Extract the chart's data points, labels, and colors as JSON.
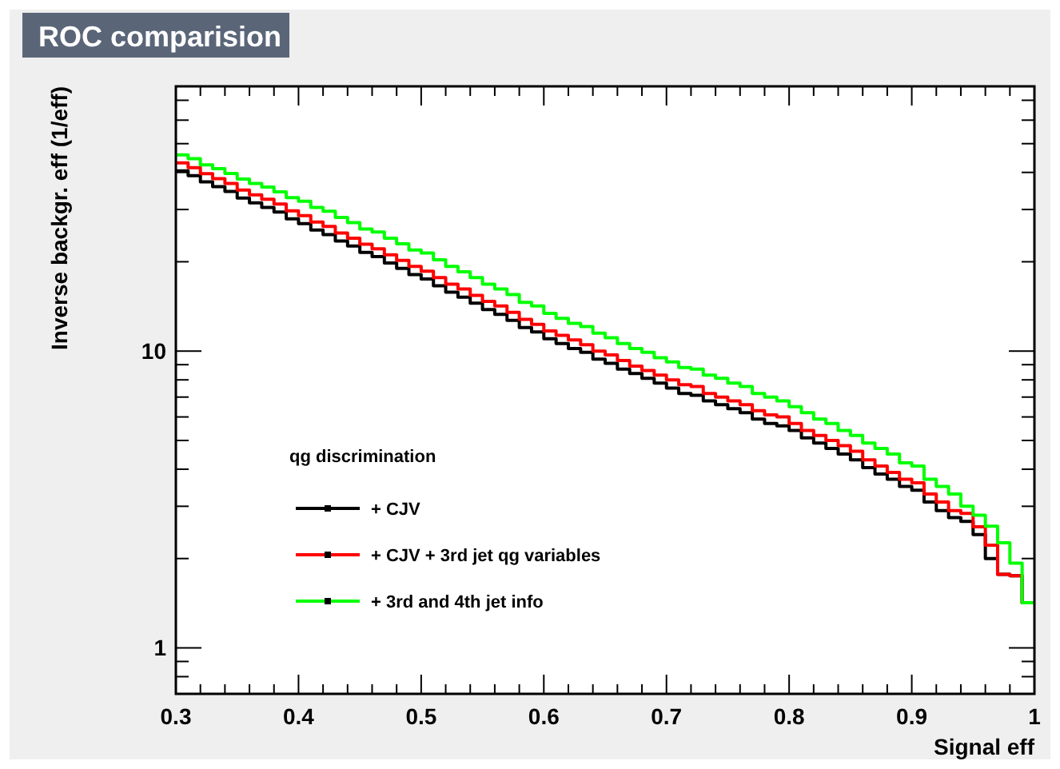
{
  "chart_data": {
    "type": "histogram",
    "title": "ROC comparision",
    "xlabel": "Signal eff",
    "ylabel": "Inverse backgr. eff (1/eff)",
    "legend_title": "qg discrimination",
    "legend": "bottom left",
    "log": "y",
    "grid": false,
    "marker": "square",
    "xlim": [
      0.3,
      1
    ],
    "ylim": [
      0.7,
      78
    ],
    "xticks": [
      {
        "value": 0.3,
        "label": "0.3"
      },
      {
        "value": 0.32,
        "label": null
      },
      {
        "value": 0.34,
        "label": null
      },
      {
        "value": 0.36,
        "label": null
      },
      {
        "value": 0.38,
        "label": null
      },
      {
        "value": 0.4,
        "label": "0.4"
      },
      {
        "value": 0.42,
        "label": null
      },
      {
        "value": 0.44,
        "label": null
      },
      {
        "value": 0.46,
        "label": null
      },
      {
        "value": 0.48,
        "label": null
      },
      {
        "value": 0.5,
        "label": "0.5"
      },
      {
        "value": 0.52,
        "label": null
      },
      {
        "value": 0.54,
        "label": null
      },
      {
        "value": 0.56,
        "label": null
      },
      {
        "value": 0.58,
        "label": null
      },
      {
        "value": 0.6,
        "label": "0.6"
      },
      {
        "value": 0.62,
        "label": null
      },
      {
        "value": 0.64,
        "label": null
      },
      {
        "value": 0.66,
        "label": null
      },
      {
        "value": 0.68,
        "label": null
      },
      {
        "value": 0.7,
        "label": "0.7"
      },
      {
        "value": 0.72,
        "label": null
      },
      {
        "value": 0.74,
        "label": null
      },
      {
        "value": 0.76,
        "label": null
      },
      {
        "value": 0.78,
        "label": null
      },
      {
        "value": 0.8,
        "label": "0.8"
      },
      {
        "value": 0.82,
        "label": null
      },
      {
        "value": 0.84,
        "label": null
      },
      {
        "value": 0.86,
        "label": null
      },
      {
        "value": 0.88,
        "label": null
      },
      {
        "value": 0.9,
        "label": "0.9"
      },
      {
        "value": 0.92,
        "label": null
      },
      {
        "value": 0.94,
        "label": null
      },
      {
        "value": 0.96,
        "label": null
      },
      {
        "value": 0.98,
        "label": null
      },
      {
        "value": 1,
        "label": "1"
      }
    ],
    "yticks": [
      {
        "value": 0.7,
        "label": null
      },
      {
        "value": 0.8,
        "label": null
      },
      {
        "value": 0.9,
        "label": null
      },
      1,
      {
        "value": 2,
        "label": null
      },
      {
        "value": 3,
        "label": null
      },
      {
        "value": 4,
        "label": null
      },
      {
        "value": 5,
        "label": null
      },
      {
        "value": 6,
        "label": null
      },
      {
        "value": 7,
        "label": null
      },
      {
        "value": 8,
        "label": null
      },
      {
        "value": 9,
        "label": null
      },
      10,
      {
        "value": 20,
        "label": null
      },
      {
        "value": 30,
        "label": null
      },
      {
        "value": 40,
        "label": null
      },
      {
        "value": 50,
        "label": null
      },
      {
        "value": 60,
        "label": null
      },
      {
        "value": 70,
        "label": null
      }
    ],
    "bins": [
      0.3,
      0.31,
      0.32,
      0.33,
      0.34,
      0.35,
      0.36,
      0.37,
      0.38,
      0.39,
      0.4,
      0.41,
      0.42,
      0.43,
      0.44,
      0.45,
      0.46,
      0.47,
      0.48,
      0.49,
      0.5,
      0.51,
      0.52,
      0.53,
      0.54,
      0.55,
      0.56,
      0.57,
      0.58,
      0.59,
      0.6,
      0.61,
      0.62,
      0.63,
      0.64,
      0.65,
      0.66,
      0.67,
      0.68,
      0.69,
      0.7,
      0.71,
      0.72,
      0.73,
      0.74,
      0.75,
      0.76,
      0.77,
      0.78,
      0.79,
      0.8,
      0.81,
      0.82,
      0.83,
      0.84,
      0.85,
      0.86,
      0.87,
      0.88,
      0.89,
      0.9,
      0.91,
      0.92,
      0.93,
      0.94,
      0.95,
      0.96,
      0.97,
      0.98,
      0.99,
      1
    ],
    "series": [
      {
        "name": "+ CJV",
        "color": "#000000",
        "values": [
          40.5,
          39.0,
          37.2,
          35.8,
          34.5,
          32.8,
          31.6,
          30.5,
          29.4,
          27.9,
          26.9,
          25.6,
          24.7,
          23.5,
          22.6,
          21.5,
          20.8,
          19.8,
          19.0,
          18.1,
          17.5,
          16.6,
          15.8,
          15.2,
          14.5,
          13.8,
          13.3,
          12.7,
          12.0,
          11.6,
          11.0,
          10.6,
          10.2,
          9.9,
          9.4,
          9.1,
          8.7,
          8.4,
          8.1,
          7.8,
          7.5,
          7.2,
          7.1,
          6.8,
          6.6,
          6.4,
          6.2,
          5.9,
          5.7,
          5.6,
          5.4,
          5.1,
          4.9,
          4.7,
          4.5,
          4.3,
          4.05,
          3.85,
          3.7,
          3.5,
          3.4,
          3.1,
          2.9,
          2.75,
          2.67,
          2.41,
          2.0,
          1.77,
          1.75,
          1.42
        ]
      },
      {
        "name": "+ CJV + 3rd jet qg variables",
        "color": "#ff0000",
        "values": [
          43.1,
          41.5,
          39.6,
          38.1,
          36.7,
          34.9,
          33.6,
          32.5,
          31.3,
          29.7,
          28.6,
          27.2,
          26.3,
          25.0,
          24.0,
          22.9,
          22.1,
          21.1,
          20.2,
          19.3,
          18.6,
          17.7,
          16.8,
          16.2,
          15.4,
          14.7,
          14.2,
          13.5,
          12.8,
          12.3,
          11.7,
          11.3,
          10.9,
          10.5,
          10.0,
          9.7,
          9.3,
          8.9,
          8.6,
          8.3,
          8.0,
          7.7,
          7.6,
          7.2,
          7.0,
          6.8,
          6.6,
          6.3,
          6.1,
          6.0,
          5.7,
          5.4,
          5.2,
          5.0,
          4.8,
          4.6,
          4.3,
          4.1,
          3.9,
          3.7,
          3.6,
          3.3,
          3.1,
          2.9,
          2.84,
          2.56,
          2.22,
          1.77,
          1.75,
          1.42
        ]
      },
      {
        "name": "+ 3rd and 4th jet info",
        "color": "#00ff00",
        "values": [
          45.8,
          44.5,
          42.4,
          41.2,
          39.7,
          38.0,
          36.7,
          35.7,
          34.4,
          32.9,
          32.0,
          30.5,
          29.6,
          28.2,
          27.1,
          25.8,
          25.2,
          24.0,
          23.0,
          21.9,
          21.4,
          20.3,
          19.3,
          18.5,
          17.7,
          16.8,
          16.2,
          15.5,
          14.6,
          14.2,
          13.4,
          12.9,
          12.4,
          12.1,
          11.5,
          11.1,
          10.6,
          10.2,
          9.9,
          9.5,
          9.2,
          8.8,
          8.7,
          8.3,
          8.1,
          7.8,
          7.6,
          7.2,
          7.0,
          6.8,
          6.5,
          6.2,
          5.9,
          5.7,
          5.4,
          5.2,
          4.9,
          4.7,
          4.5,
          4.2,
          4.1,
          3.7,
          3.5,
          3.3,
          3.0,
          2.8,
          2.57,
          2.26,
          1.93,
          1.42
        ]
      }
    ]
  }
}
